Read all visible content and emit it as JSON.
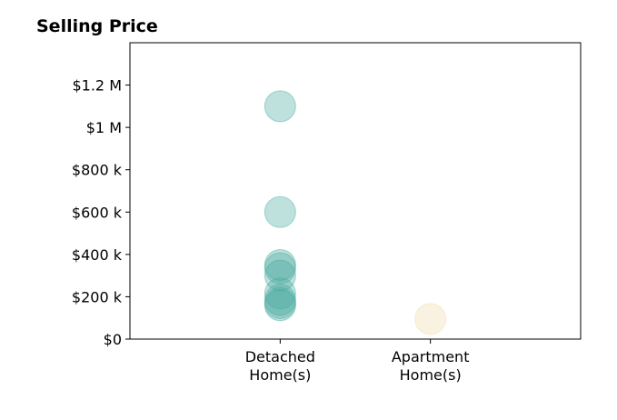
{
  "chart_data": {
    "type": "scatter",
    "title": "Selling Price",
    "xlabel": "",
    "ylabel": "",
    "categories": [
      "Detached\nHome(s)",
      "Apartment\nHome(s)"
    ],
    "xlim": [
      -1,
      2
    ],
    "ylim": [
      0,
      1400000
    ],
    "yticks": [
      0,
      200000,
      400000,
      600000,
      800000,
      1000000,
      1200000
    ],
    "ytick_labels": [
      "$0",
      "$200 k",
      "$400 k",
      "$600 k",
      "$800 k",
      "$1 M",
      "$1.2 M"
    ],
    "grid": false,
    "series": [
      {
        "category": 0,
        "color": "#48A99F",
        "values": [
          1100000,
          600000,
          350000,
          335000,
          300000,
          215000,
          185000,
          170000,
          160000
        ]
      },
      {
        "category": 1,
        "color": "#F2D9A6",
        "values": [
          95000
        ]
      }
    ]
  }
}
